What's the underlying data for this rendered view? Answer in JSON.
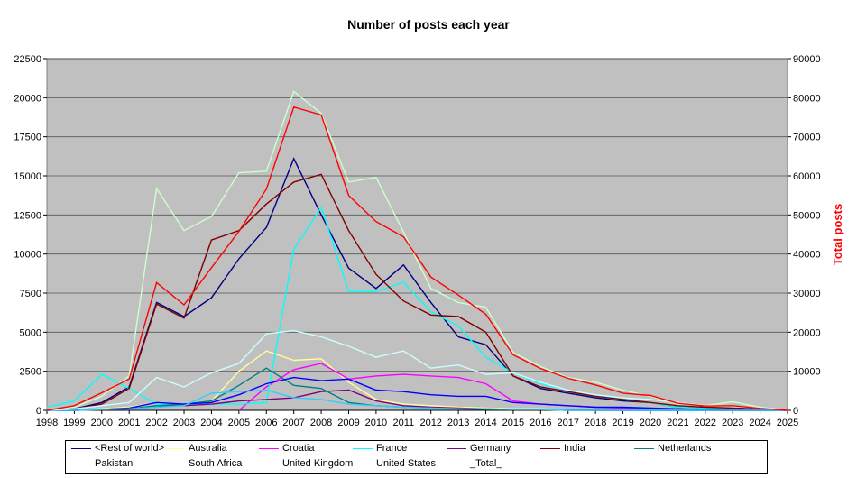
{
  "chart_data": {
    "type": "line",
    "title": "Number of posts each year",
    "xlabel": "",
    "ylabel": "",
    "y2label": "Total posts",
    "x": [
      "1998",
      "1999",
      "2000",
      "2001",
      "2002",
      "2003",
      "2004",
      "2005",
      "2006",
      "2007",
      "2008",
      "2009",
      "2010",
      "2011",
      "2012",
      "2013",
      "2014",
      "2015",
      "2016",
      "2017",
      "2018",
      "2019",
      "2020",
      "2021",
      "2022",
      "2023",
      "2024",
      "2025"
    ],
    "ylim": [
      0,
      22500
    ],
    "y2lim": [
      0,
      90000
    ],
    "yticks": [
      "0",
      "2500",
      "5000",
      "7500",
      "10000",
      "12500",
      "15000",
      "17500",
      "20000",
      "22500"
    ],
    "y2ticks": [
      "0",
      "10000",
      "20000",
      "30000",
      "40000",
      "50000",
      "60000",
      "70000",
      "80000",
      "90000"
    ],
    "grid": true,
    "legend_position": "bottom",
    "colors": {
      "plot_bg": "#c0c0c0",
      "right_axis": "#ff0000",
      "gridline": "#808080"
    },
    "series": [
      {
        "name": "<Rest of world>",
        "color": "#000080",
        "axis": "left",
        "values": [
          0,
          100,
          500,
          1500,
          6900,
          6000,
          7200,
          9700,
          11700,
          16100,
          12500,
          9100,
          7800,
          9300,
          6900,
          4700,
          4200,
          2200,
          1400,
          1100,
          800,
          600,
          500,
          200,
          150,
          100,
          50,
          0
        ]
      },
      {
        "name": "Australia",
        "color": "#ffff99",
        "axis": "left",
        "values": [
          0,
          0,
          100,
          200,
          500,
          300,
          600,
          2500,
          3800,
          3200,
          3300,
          1800,
          700,
          400,
          300,
          200,
          150,
          100,
          100,
          50,
          50,
          50,
          0,
          0,
          0,
          0,
          0,
          0
        ]
      },
      {
        "name": "Croatia",
        "color": "#ff00ff",
        "axis": "left",
        "values": [
          null,
          null,
          null,
          null,
          null,
          null,
          null,
          0,
          1500,
          2600,
          3000,
          2000,
          2200,
          2300,
          2200,
          2100,
          1700,
          600,
          400,
          300,
          200,
          150,
          100,
          50,
          0,
          0,
          0,
          0
        ]
      },
      {
        "name": "France",
        "color": "#00ffff",
        "axis": "left",
        "values": [
          200,
          600,
          2300,
          1400,
          400,
          400,
          400,
          400,
          500,
          10300,
          13000,
          7600,
          7600,
          8200,
          6300,
          5400,
          3400,
          2400,
          1700,
          1300,
          1000,
          700,
          500,
          200,
          150,
          100,
          50,
          0
        ]
      },
      {
        "name": "Germany",
        "color": "#800080",
        "axis": "left",
        "values": [
          0,
          0,
          50,
          100,
          300,
          300,
          400,
          600,
          700,
          800,
          1200,
          1300,
          600,
          300,
          200,
          150,
          100,
          50,
          50,
          50,
          0,
          0,
          0,
          0,
          0,
          0,
          0,
          0
        ]
      },
      {
        "name": "India",
        "color": "#800000",
        "axis": "left",
        "values": [
          0,
          100,
          400,
          1400,
          6800,
          5900,
          10900,
          11500,
          13200,
          14600,
          15100,
          11500,
          8700,
          7000,
          6100,
          6000,
          5000,
          2200,
          1500,
          1200,
          900,
          700,
          500,
          300,
          200,
          150,
          100,
          0
        ]
      },
      {
        "name": "Netherlands",
        "color": "#008080",
        "axis": "left",
        "values": [
          0,
          0,
          50,
          100,
          300,
          400,
          600,
          1600,
          2700,
          1600,
          1400,
          500,
          300,
          200,
          150,
          100,
          50,
          50,
          50,
          0,
          0,
          0,
          0,
          0,
          0,
          0,
          0,
          0
        ]
      },
      {
        "name": "Pakistan",
        "color": "#0000ff",
        "axis": "left",
        "values": [
          0,
          0,
          50,
          150,
          500,
          400,
          500,
          1000,
          1700,
          2100,
          1900,
          2000,
          1300,
          1200,
          1000,
          900,
          900,
          500,
          400,
          300,
          200,
          200,
          150,
          100,
          50,
          50,
          50,
          0
        ]
      },
      {
        "name": "South Africa",
        "color": "#33ccff",
        "axis": "left",
        "values": [
          0,
          0,
          50,
          100,
          200,
          300,
          1100,
          1200,
          1300,
          800,
          700,
          400,
          300,
          200,
          150,
          100,
          100,
          50,
          50,
          0,
          0,
          0,
          0,
          0,
          0,
          0,
          0,
          0
        ]
      },
      {
        "name": "United Kingdom",
        "color": "#ccffff",
        "axis": "left",
        "values": [
          0,
          100,
          300,
          500,
          2100,
          1500,
          2400,
          3000,
          4900,
          5100,
          4700,
          4100,
          3400,
          3800,
          2700,
          2900,
          2300,
          2400,
          1800,
          1300,
          1000,
          800,
          700,
          500,
          300,
          250,
          150,
          0
        ]
      },
      {
        "name": "United States",
        "color": "#ccffcc",
        "axis": "left",
        "values": [
          0,
          200,
          900,
          2200,
          14200,
          11500,
          12400,
          15200,
          15300,
          20400,
          19000,
          14600,
          14900,
          11400,
          7800,
          6900,
          6600,
          3700,
          2800,
          2100,
          1800,
          1300,
          900,
          400,
          300,
          550,
          200,
          0
        ]
      },
      {
        "name": "_Total_",
        "color": "#ff0000",
        "axis": "right",
        "values": [
          0,
          1200,
          4500,
          8000,
          32700,
          27000,
          36500,
          45800,
          56600,
          77600,
          75600,
          55000,
          48300,
          44400,
          34100,
          29500,
          24600,
          14200,
          10700,
          8200,
          6500,
          4400,
          3800,
          1800,
          1100,
          1200,
          500,
          0
        ]
      }
    ]
  }
}
